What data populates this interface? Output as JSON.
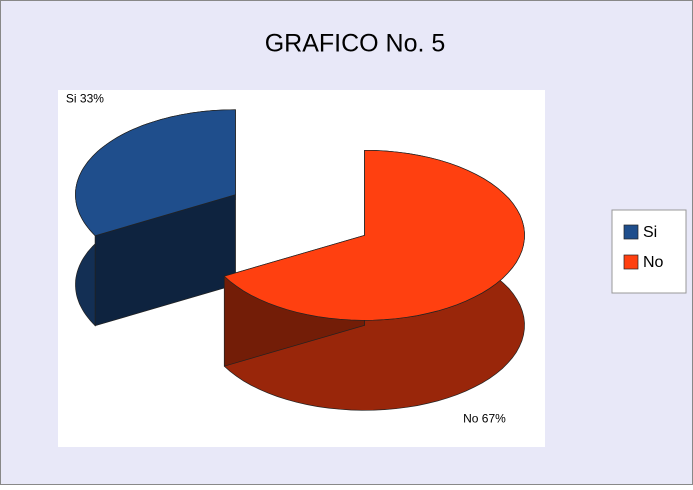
{
  "chart_data": {
    "type": "pie3d",
    "title": "GRAFICO No. 5",
    "categories": [
      "Si",
      "No"
    ],
    "values": [
      33,
      67
    ],
    "value_labels": [
      "Si 33%",
      "No 67%"
    ],
    "colors": [
      "#1f4e8c",
      "#ff4010"
    ],
    "legend": "right"
  }
}
